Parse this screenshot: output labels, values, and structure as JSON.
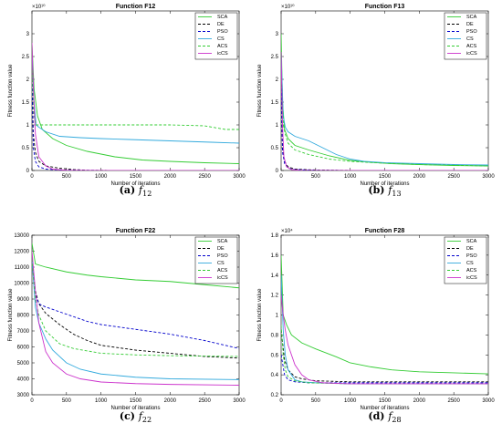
{
  "chart_data": [
    {
      "type": "line",
      "title": "Function F12",
      "xlabel": "Number of iterations",
      "ylabel": "Fitness function value",
      "xlim": [
        0,
        3000
      ],
      "ylim": [
        0,
        35000000000
      ],
      "yexp": "×10¹⁰",
      "yticks": [
        0,
        5000000000,
        10000000000,
        15000000000,
        20000000000,
        25000000000,
        30000000000
      ],
      "yticklabels": [
        "0",
        "0.5",
        "1",
        "1.5",
        "2",
        "2.5",
        "3"
      ],
      "xticks": [
        0,
        500,
        1000,
        1500,
        2000,
        2500,
        3000
      ],
      "legend_position": "top-right",
      "caption": {
        "label": "(a)",
        "func": "f",
        "sub": "12"
      },
      "series": [
        {
          "name": "SCA",
          "color": "#33cc33",
          "dash": "",
          "x": [
            0,
            30,
            80,
            150,
            300,
            500,
            800,
            1200,
            1600,
            2000,
            2500,
            3000
          ],
          "y": [
            28000000000,
            18000000000,
            12000000000,
            9000000000,
            7000000000,
            5500000000,
            4200000000,
            3000000000,
            2300000000,
            2000000000,
            1700000000,
            1500000000
          ]
        },
        {
          "name": "DE",
          "color": "#000000",
          "dash": "3,2",
          "x": [
            0,
            20,
            50,
            100,
            200,
            400,
            600,
            800,
            1200,
            3000
          ],
          "y": [
            20000000000,
            8000000000,
            4000000000,
            2000000000,
            1000000000,
            500000000,
            200000000,
            50000000,
            10000000,
            0
          ]
        },
        {
          "name": "PSO",
          "color": "#0000cc",
          "dash": "3,2",
          "x": [
            0,
            20,
            50,
            100,
            200,
            400,
            800,
            1200,
            2000,
            3000
          ],
          "y": [
            20000000000,
            5000000000,
            2000000000,
            800000000,
            300000000,
            100000000,
            30000000,
            10000000,
            0,
            0
          ]
        },
        {
          "name": "CS",
          "color": "#33aadd",
          "dash": "",
          "x": [
            0,
            30,
            60,
            100,
            200,
            400,
            700,
            1000,
            1400,
            1800,
            2200,
            2600,
            3000
          ],
          "y": [
            26000000000,
            15000000000,
            10000000000,
            9500000000,
            8500000000,
            7500000000,
            7200000000,
            7000000000,
            6800000000,
            6600000000,
            6400000000,
            6200000000,
            6000000000
          ]
        },
        {
          "name": "ACS",
          "color": "#33cc33",
          "dash": "3,2",
          "x": [
            0,
            30,
            60,
            100,
            500,
            1000,
            1500,
            2000,
            2500,
            2800,
            3000
          ],
          "y": [
            22000000000,
            12000000000,
            10000000000,
            10000000000,
            10000000000,
            10000000000,
            10000000000,
            10000000000,
            9800000000,
            9000000000,
            9000000000
          ]
        },
        {
          "name": "icCS",
          "color": "#cc33cc",
          "dash": "",
          "x": [
            0,
            20,
            50,
            100,
            200,
            300,
            500,
            1000,
            3000
          ],
          "y": [
            28000000000,
            18000000000,
            8000000000,
            3000000000,
            1000000000,
            300000000,
            50000000,
            0,
            0
          ]
        }
      ]
    },
    {
      "type": "line",
      "title": "Function F13",
      "xlabel": "Number of iterations",
      "ylabel": "Fitness function value",
      "xlim": [
        0,
        3000
      ],
      "ylim": [
        0,
        35000000000
      ],
      "yexp": "×10¹⁰",
      "yticks": [
        0,
        5000000000,
        10000000000,
        15000000000,
        20000000000,
        25000000000,
        30000000000
      ],
      "yticklabels": [
        "0",
        "0.5",
        "1",
        "1.5",
        "2",
        "2.5",
        "3"
      ],
      "xticks": [
        0,
        500,
        1000,
        1500,
        2000,
        2500,
        3000
      ],
      "legend_position": "top-right",
      "caption": {
        "label": "(b)",
        "func": "f",
        "sub": "13"
      },
      "series": [
        {
          "name": "SCA",
          "color": "#33cc33",
          "dash": "",
          "x": [
            0,
            20,
            50,
            100,
            200,
            400,
            700,
            1000,
            1300,
            1600,
            2000,
            2500,
            3000
          ],
          "y": [
            30000000000,
            15000000000,
            9000000000,
            7000000000,
            5500000000,
            4500000000,
            3200000000,
            2200000000,
            1800000000,
            1500000000,
            1300000000,
            1100000000,
            1000000000
          ]
        },
        {
          "name": "DE",
          "color": "#000000",
          "dash": "3,2",
          "x": [
            0,
            20,
            50,
            100,
            200,
            500,
            1000,
            3000
          ],
          "y": [
            20000000000,
            5000000000,
            2000000000,
            800000000,
            300000000,
            100000000,
            20000000,
            0
          ]
        },
        {
          "name": "PSO",
          "color": "#0000cc",
          "dash": "3,2",
          "x": [
            0,
            20,
            50,
            100,
            200,
            500,
            1000,
            3000
          ],
          "y": [
            18000000000,
            4000000000,
            1500000000,
            500000000,
            200000000,
            50000000,
            10000000,
            0
          ]
        },
        {
          "name": "CS",
          "color": "#33aadd",
          "dash": "",
          "x": [
            0,
            30,
            60,
            100,
            200,
            400,
            600,
            800,
            1000,
            1200,
            1500,
            2000,
            2500,
            3000
          ],
          "y": [
            26000000000,
            12000000000,
            9500000000,
            8500000000,
            7500000000,
            6500000000,
            5000000000,
            3500000000,
            2500000000,
            2000000000,
            1700000000,
            1500000000,
            1300000000,
            1200000000
          ]
        },
        {
          "name": "ACS",
          "color": "#33cc33",
          "dash": "3,2",
          "x": [
            0,
            30,
            60,
            100,
            200,
            400,
            700,
            1000,
            1500,
            2000,
            3000
          ],
          "y": [
            22000000000,
            10000000000,
            8000000000,
            6000000000,
            4500000000,
            3500000000,
            2500000000,
            2000000000,
            1600000000,
            1300000000,
            1000000000
          ]
        },
        {
          "name": "icCS",
          "color": "#cc33cc",
          "dash": "",
          "x": [
            0,
            20,
            40,
            80,
            150,
            300,
            3000
          ],
          "y": [
            26000000000,
            10000000000,
            3000000000,
            800000000,
            200000000,
            0,
            0
          ]
        }
      ]
    },
    {
      "type": "line",
      "title": "Function F22",
      "xlabel": "Number of iterations",
      "ylabel": "Fitness function value",
      "xlim": [
        0,
        3000
      ],
      "ylim": [
        3000,
        13000
      ],
      "yexp": "",
      "yticks": [
        3000,
        4000,
        5000,
        6000,
        7000,
        8000,
        9000,
        10000,
        11000,
        12000,
        13000
      ],
      "yticklabels": [
        "3000",
        "4000",
        "5000",
        "6000",
        "7000",
        "8000",
        "9000",
        "10000",
        "11000",
        "12000",
        "13000"
      ],
      "xticks": [
        0,
        500,
        1000,
        1500,
        2000,
        2500,
        3000
      ],
      "legend_position": "top-right",
      "caption": {
        "label": "(c)",
        "func": "f",
        "sub": "22"
      },
      "series": [
        {
          "name": "SCA",
          "color": "#33cc33",
          "dash": "",
          "x": [
            0,
            50,
            200,
            500,
            800,
            1000,
            1500,
            2000,
            2500,
            3000
          ],
          "y": [
            12500,
            11200,
            11000,
            10700,
            10500,
            10400,
            10200,
            10100,
            9900,
            9700
          ]
        },
        {
          "name": "DE",
          "color": "#000000",
          "dash": "3,2",
          "x": [
            0,
            50,
            100,
            200,
            400,
            600,
            800,
            1000,
            1500,
            2000,
            2500,
            3000
          ],
          "y": [
            11500,
            9500,
            8700,
            8100,
            7400,
            6800,
            6400,
            6100,
            5800,
            5600,
            5400,
            5300
          ]
        },
        {
          "name": "PSO",
          "color": "#0000cc",
          "dash": "3,2",
          "x": [
            0,
            50,
            100,
            200,
            400,
            600,
            800,
            1000,
            1500,
            2000,
            2500,
            3000
          ],
          "y": [
            11500,
            9300,
            8700,
            8500,
            8200,
            7900,
            7600,
            7400,
            7100,
            6800,
            6400,
            5900
          ]
        },
        {
          "name": "CS",
          "color": "#33aadd",
          "dash": "",
          "x": [
            0,
            50,
            100,
            200,
            300,
            500,
            700,
            1000,
            1500,
            2000,
            3000
          ],
          "y": [
            11500,
            8500,
            7500,
            6500,
            5800,
            5000,
            4600,
            4300,
            4100,
            4000,
            3950
          ]
        },
        {
          "name": "ACS",
          "color": "#33cc33",
          "dash": "3,2",
          "x": [
            0,
            50,
            100,
            200,
            400,
            600,
            1000,
            1500,
            2000,
            3000
          ],
          "y": [
            11500,
            9000,
            8000,
            7000,
            6200,
            5900,
            5600,
            5500,
            5450,
            5400
          ]
        },
        {
          "name": "icCS",
          "color": "#cc33cc",
          "dash": "",
          "x": [
            0,
            50,
            100,
            200,
            300,
            500,
            700,
            1000,
            1500,
            2000,
            3000
          ],
          "y": [
            12000,
            9500,
            7500,
            5700,
            5000,
            4300,
            4000,
            3800,
            3700,
            3650,
            3600
          ]
        }
      ]
    },
    {
      "type": "line",
      "title": "Function F28",
      "xlabel": "Number of iterations",
      "ylabel": "Fitness function value",
      "xlim": [
        0,
        3000
      ],
      "ylim": [
        2000,
        18000
      ],
      "yexp": "×10⁴",
      "yticks": [
        2000,
        4000,
        6000,
        8000,
        10000,
        12000,
        14000,
        16000,
        18000
      ],
      "yticklabels": [
        "0.2",
        "0.4",
        "0.6",
        "0.8",
        "1",
        "1.2",
        "1.4",
        "1.6",
        "1.8"
      ],
      "xticks": [
        0,
        500,
        1000,
        1500,
        2000,
        2500,
        3000
      ],
      "legend_position": "top-right",
      "caption": {
        "label": "(d)",
        "func": "f",
        "sub": "28"
      },
      "series": [
        {
          "name": "SCA",
          "color": "#33cc33",
          "dash": "",
          "x": [
            0,
            30,
            80,
            150,
            300,
            500,
            800,
            1000,
            1300,
            1600,
            2000,
            2500,
            3000
          ],
          "y": [
            16000,
            10000,
            9000,
            8000,
            7200,
            6600,
            5800,
            5200,
            4800,
            4500,
            4300,
            4200,
            4100
          ]
        },
        {
          "name": "DE",
          "color": "#000000",
          "dash": "3,2",
          "x": [
            0,
            50,
            100,
            200,
            300,
            500,
            1000,
            2000,
            3000
          ],
          "y": [
            8500,
            5500,
            4500,
            3800,
            3600,
            3400,
            3300,
            3300,
            3300
          ]
        },
        {
          "name": "PSO",
          "color": "#0000cc",
          "dash": "3,2",
          "x": [
            0,
            50,
            100,
            200,
            400,
            1000,
            3000
          ],
          "y": [
            6000,
            4000,
            3500,
            3300,
            3200,
            3200,
            3200
          ]
        },
        {
          "name": "CS",
          "color": "#33aadd",
          "dash": "",
          "x": [
            0,
            30,
            60,
            100,
            200,
            300,
            500,
            1000,
            3000
          ],
          "y": [
            14000,
            8500,
            6000,
            4500,
            3500,
            3300,
            3200,
            3100,
            3100
          ]
        },
        {
          "name": "ACS",
          "color": "#33cc33",
          "dash": "3,2",
          "x": [
            0,
            30,
            60,
            100,
            200,
            400,
            1000,
            3000
          ],
          "y": [
            9000,
            6000,
            4500,
            3800,
            3400,
            3200,
            3100,
            3100
          ]
        },
        {
          "name": "icCS",
          "color": "#cc33cc",
          "dash": "",
          "x": [
            0,
            30,
            60,
            100,
            200,
            300,
            400,
            600,
            1000,
            3000
          ],
          "y": [
            12000,
            10000,
            8500,
            7000,
            5000,
            4000,
            3500,
            3200,
            3100,
            3100
          ]
        }
      ]
    }
  ]
}
